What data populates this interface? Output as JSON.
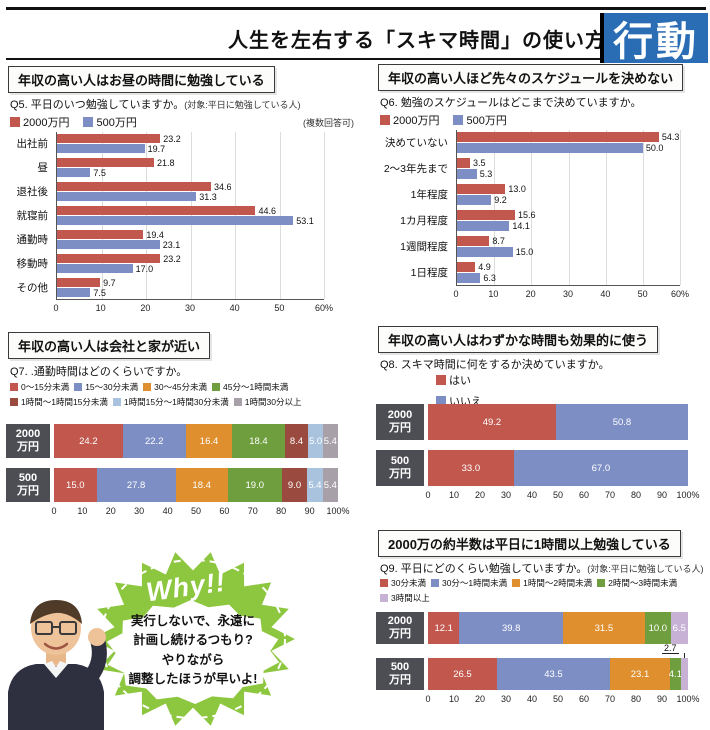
{
  "header": {
    "title": "人生を左右する「スキマ時間」の使い方",
    "badge": "行動"
  },
  "colors": {
    "red": "#c2574e",
    "blue": "#7d8ec5",
    "orange": "#df8f2d",
    "green": "#6f9e3e",
    "maroon": "#9a4a3f",
    "lightblue": "#a9c3de",
    "gray": "#a7a0a8",
    "lavender": "#c7b2d6",
    "badge_bg": "#2a6db5",
    "bubble_green": "#8dc63f",
    "label_box": "#4d4e54"
  },
  "sections": {
    "q5": {
      "banner": "年収の高い人はお昼の時間に勉強している",
      "question": "Q5. 平日のいつ勉強していますか。",
      "note": "(対象:平日に勉強している人)",
      "multi_note": "(複数回答可)"
    },
    "q6": {
      "banner": "年収の高い人ほど先々のスケジュールを決めない",
      "question": "Q6. 勉強のスケジュールはどこまで決めていますか。"
    },
    "q7": {
      "banner": "年収の高い人は会社と家が近い",
      "question": "Q7. .通勤時間はどのくらいですか。"
    },
    "q8": {
      "banner": "年収の高い人はわずかな時間も効果的に使う",
      "question": "Q8. スキマ時間に何をするか決めていますか。"
    },
    "q9": {
      "banner": "2000万の約半数は平日に1時間以上勉強している",
      "question": "Q9. 平日にどのくらい勉強していますか。",
      "note": "(対象:平日に勉強している人)"
    }
  },
  "bubble": {
    "exclaim": "Why!!",
    "lines": [
      "実行しないで、永遠に",
      "計画し続けるつもり?",
      "やりながら",
      "調整したほうが早いよ!"
    ]
  },
  "chart_data": [
    {
      "id": "q5",
      "type": "bar",
      "variant": "grouped_horizontal",
      "title": "Q5. 平日のいつ勉強していますか。(対象:平日に勉強している人)",
      "categories": [
        "出社前",
        "昼",
        "退社後",
        "就寝前",
        "通勤時",
        "移動時",
        "その他"
      ],
      "series": [
        {
          "name": "2000万円",
          "color": "red",
          "values": [
            23.2,
            21.8,
            34.6,
            44.6,
            19.4,
            23.2,
            9.7
          ]
        },
        {
          "name": "500万円",
          "color": "blue",
          "values": [
            19.7,
            7.5,
            31.3,
            53.1,
            23.1,
            17.0,
            7.5
          ]
        }
      ],
      "legend": [
        {
          "label": "2000万円",
          "color": "red"
        },
        {
          "label": "500万円",
          "color": "blue"
        }
      ],
      "xlim": [
        0,
        60
      ],
      "ticks": [
        "0",
        "10",
        "20",
        "30",
        "40",
        "50",
        "60%"
      ],
      "grid": true,
      "legend_position": "top"
    },
    {
      "id": "q6",
      "type": "bar",
      "variant": "grouped_horizontal",
      "title": "Q6. 勉強のスケジュールはどこまで決めていますか。",
      "categories": [
        "決めていない",
        "2〜3年先まで",
        "1年程度",
        "1カ月程度",
        "1週間程度",
        "1日程度"
      ],
      "series": [
        {
          "name": "2000万円",
          "color": "red",
          "values": [
            54.3,
            3.5,
            13.0,
            15.6,
            8.7,
            4.9
          ]
        },
        {
          "name": "500万円",
          "color": "blue",
          "values": [
            50.0,
            5.3,
            9.2,
            14.1,
            15.0,
            6.3
          ]
        }
      ],
      "legend": [
        {
          "label": "2000万円",
          "color": "red"
        },
        {
          "label": "500万円",
          "color": "blue"
        }
      ],
      "xlim": [
        0,
        60
      ],
      "ticks": [
        "0",
        "10",
        "20",
        "30",
        "40",
        "50",
        "60%"
      ],
      "grid": true,
      "legend_position": "top"
    },
    {
      "id": "q7",
      "type": "bar",
      "variant": "stacked_horizontal",
      "title": "Q7. .通勤時間はどのくらいですか。",
      "categories": [
        "2000\n万円",
        "500\n万円"
      ],
      "segments": [
        "0〜15分未満",
        "15〜30分未満",
        "30〜45分未満",
        "45分〜1時間未満",
        "1時間〜1時間15分未満",
        "1時間15分〜1時間30分未満",
        "1時間30分以上"
      ],
      "colors": [
        "red",
        "blue",
        "orange",
        "green",
        "maroon",
        "lightblue",
        "gray"
      ],
      "rows": [
        [
          24.2,
          22.2,
          16.4,
          18.4,
          8.4,
          5.0,
          5.4
        ],
        [
          15.0,
          27.8,
          18.4,
          19.0,
          9.0,
          5.4,
          5.4
        ]
      ],
      "legend": [
        {
          "label": "0〜15分未満",
          "color": "red"
        },
        {
          "label": "15〜30分未満",
          "color": "blue"
        },
        {
          "label": "30〜45分未満",
          "color": "orange"
        },
        {
          "label": "45分〜1時間未満",
          "color": "green"
        },
        {
          "label": "1時間〜1時間15分未満",
          "color": "maroon"
        },
        {
          "label": "1時間15分〜1時間30分未満",
          "color": "lightblue"
        },
        {
          "label": "1時間30分以上",
          "color": "gray"
        }
      ],
      "xlim": [
        0,
        100
      ],
      "ticks": [
        "0",
        "10",
        "20",
        "30",
        "40",
        "50",
        "60",
        "70",
        "80",
        "90",
        "100%"
      ],
      "grid": false,
      "legend_position": "top"
    },
    {
      "id": "q8",
      "type": "bar",
      "variant": "stacked_horizontal",
      "title": "Q8. スキマ時間に何をするか決めていますか。",
      "categories": [
        "2000\n万円",
        "500\n万円"
      ],
      "segments": [
        "はい",
        "いいえ"
      ],
      "colors": [
        "red",
        "blue"
      ],
      "rows": [
        [
          49.2,
          50.8
        ],
        [
          33.0,
          67.0
        ]
      ],
      "legend": [
        {
          "label": "はい",
          "color": "red"
        },
        {
          "label": "いいえ",
          "color": "blue"
        }
      ],
      "xlim": [
        0,
        100
      ],
      "ticks": [
        "0",
        "10",
        "20",
        "30",
        "40",
        "50",
        "60",
        "70",
        "80",
        "90",
        "100%"
      ],
      "grid": false,
      "legend_position": "top-left-column"
    },
    {
      "id": "q9",
      "type": "bar",
      "variant": "stacked_horizontal",
      "title": "Q9. 平日にどのくらい勉強していますか。(対象:平日に勉強している人)",
      "categories": [
        "2000\n万円",
        "500\n万円"
      ],
      "segments": [
        "30分未満",
        "30分〜1時間未満",
        "1時間〜2時間未満",
        "2時間〜3時間未満",
        "3時間以上"
      ],
      "colors": [
        "red",
        "blue",
        "orange",
        "green",
        "lavender"
      ],
      "rows": [
        [
          12.1,
          39.8,
          31.5,
          10.0,
          6.5
        ],
        [
          26.5,
          43.5,
          23.1,
          4.1,
          2.7
        ]
      ],
      "legend": [
        {
          "label": "30分未満",
          "color": "red"
        },
        {
          "label": "30分〜1時間未満",
          "color": "blue"
        },
        {
          "label": "1時間〜2時間未満",
          "color": "orange"
        },
        {
          "label": "2時間〜3時間未満",
          "color": "green"
        },
        {
          "label": "3時間以上",
          "color": "lavender"
        }
      ],
      "xlim": [
        0,
        100
      ],
      "ticks": [
        "0",
        "10",
        "20",
        "30",
        "40",
        "50",
        "60",
        "70",
        "80",
        "90",
        "100%"
      ],
      "grid": false,
      "legend_position": "top",
      "callout": {
        "row": 1,
        "segment": 4
      }
    }
  ]
}
